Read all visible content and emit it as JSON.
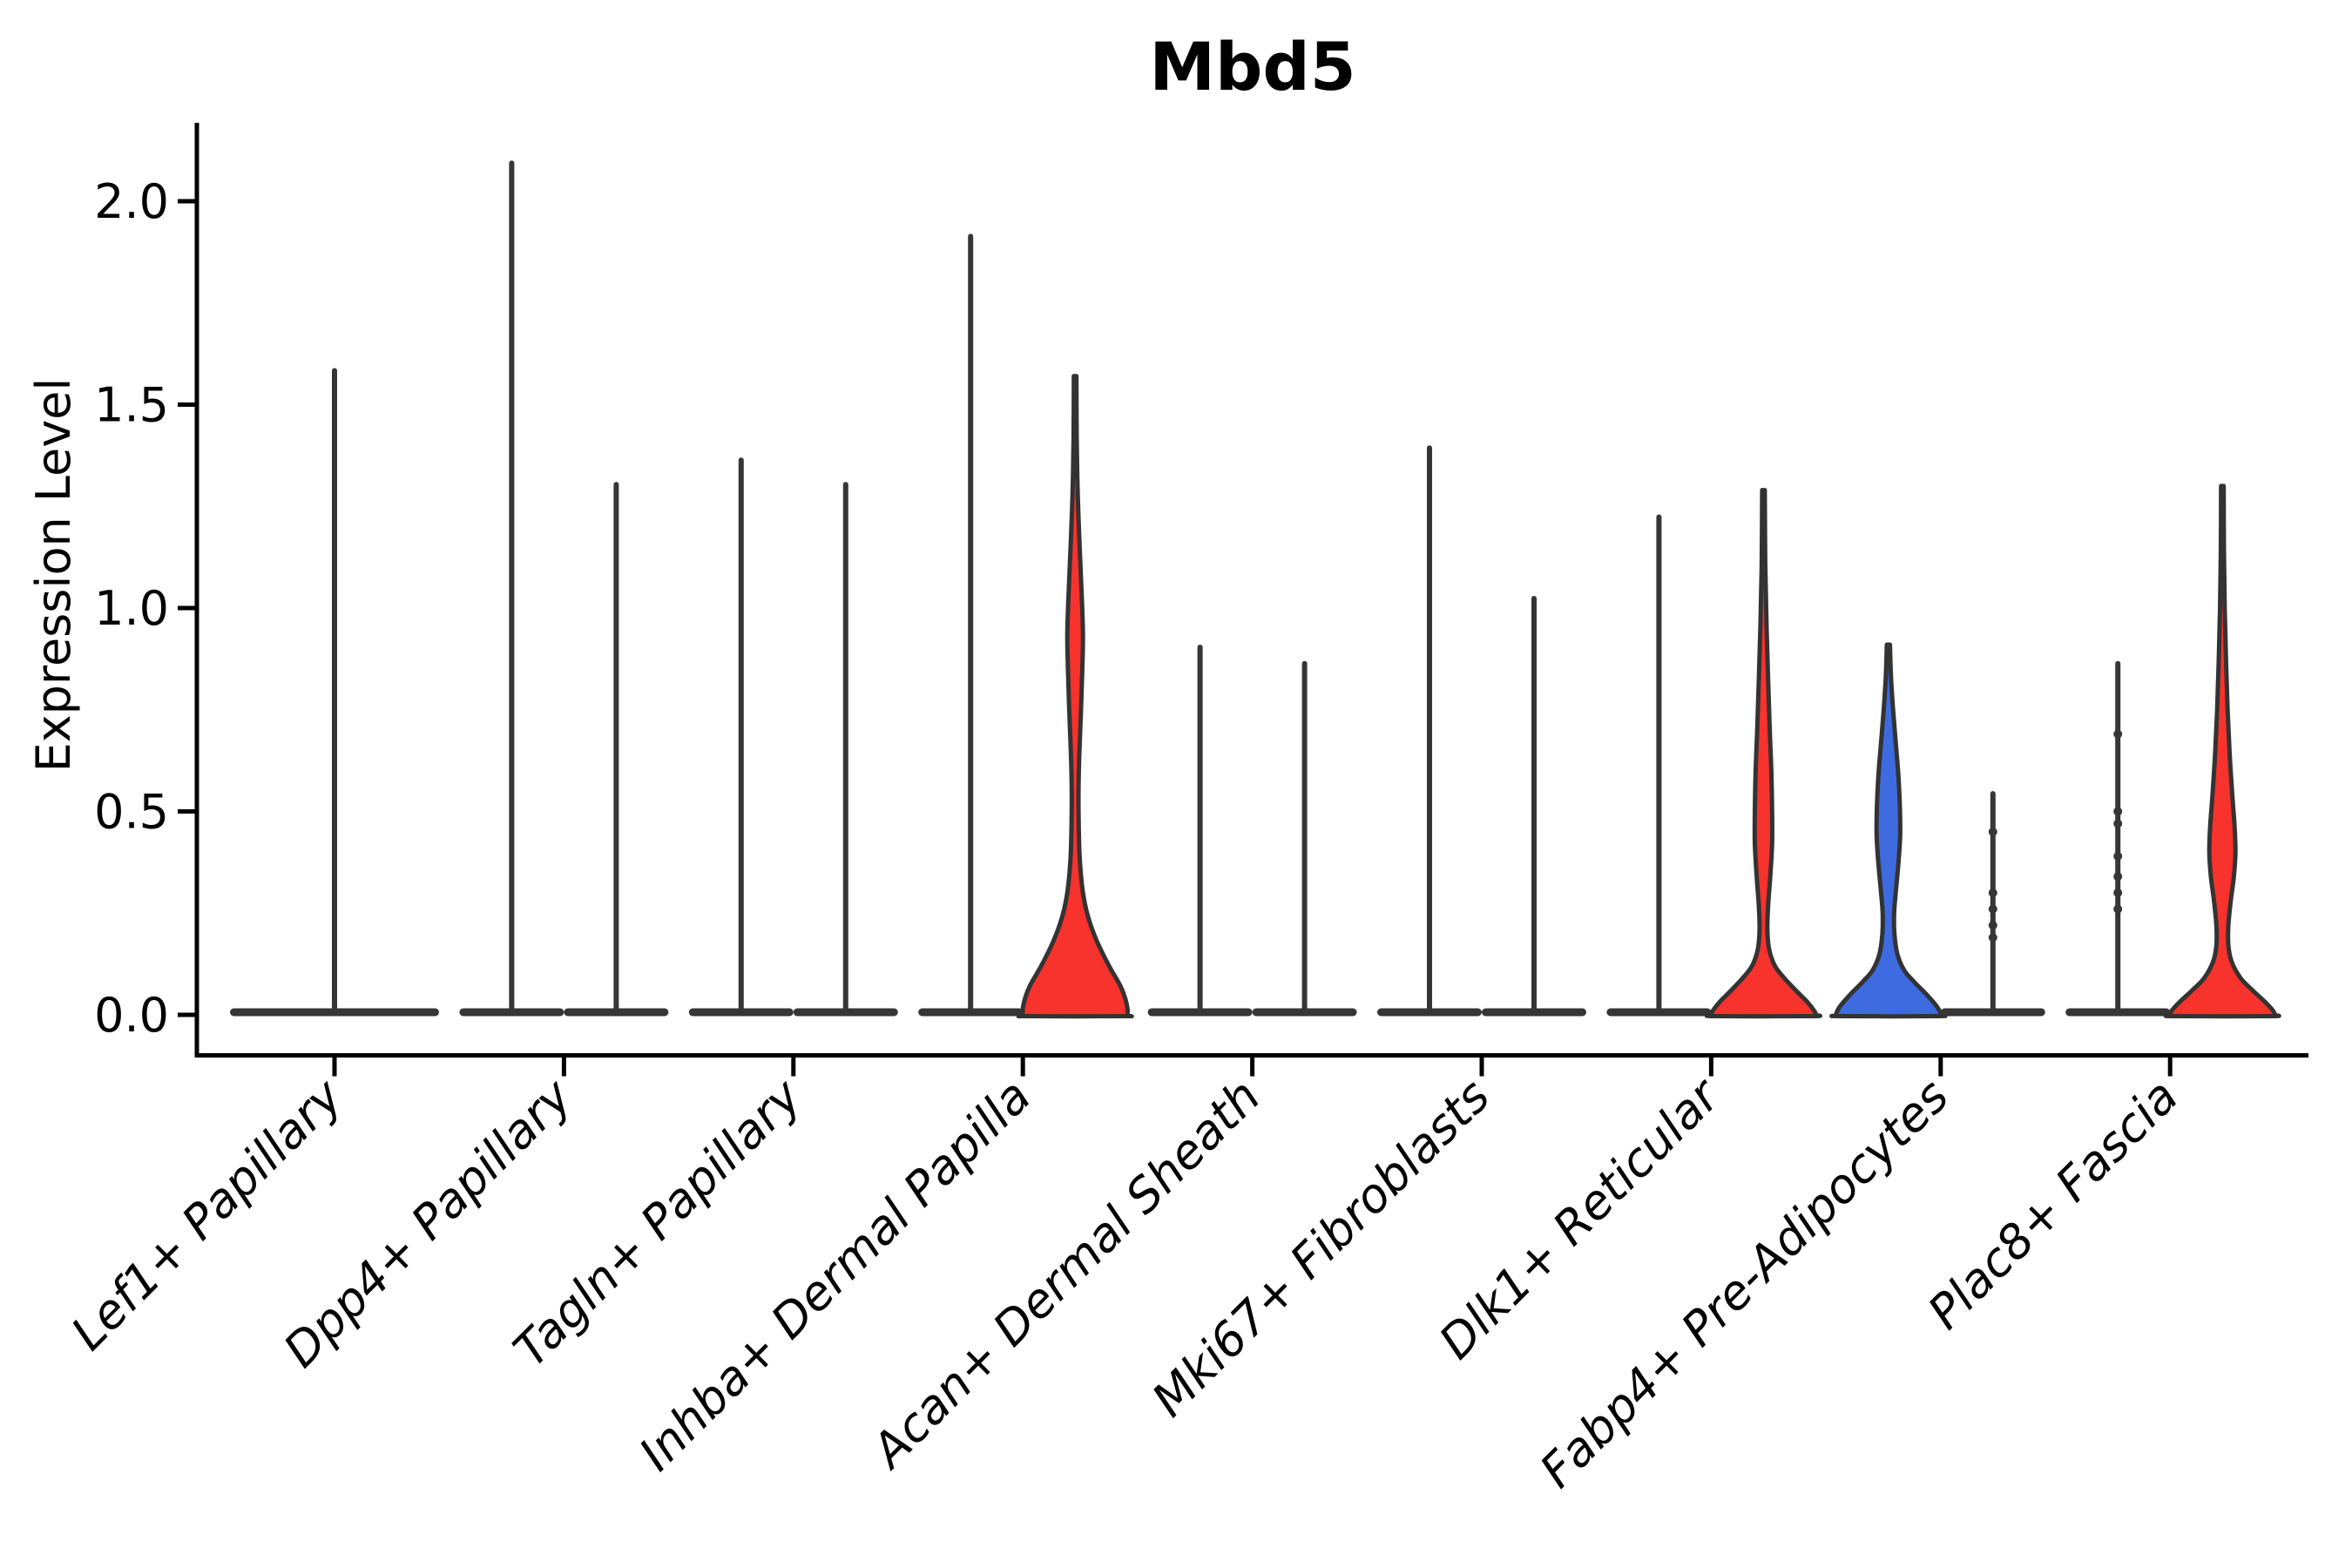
{
  "chart_data": {
    "type": "violin",
    "title": "Mbd5",
    "xlabel": "",
    "ylabel": "Expression Level",
    "ylim": [
      -0.1,
      2.19
    ],
    "grid": false,
    "legend": null,
    "y_ticks": [
      0.0,
      0.5,
      1.0,
      1.5,
      2.0
    ],
    "y_tick_labels": [
      "0.0",
      "0.5",
      "1.0",
      "1.5",
      "2.0"
    ],
    "x_tick_rotation": 45,
    "colors": {
      "blue_fill": "#3E6BE0",
      "red_fill": "#F8322C",
      "violin_outline": "#333333",
      "flat_violin": "#363636",
      "axis": "#000000",
      "background": "#FFFFFF"
    },
    "categories": [
      "Lef1+ Papillary",
      "Dpp4+ Papillary",
      "Tagln+ Papillary",
      "Inhba+ Dermal Papilla",
      "Acan+ Dermal Sheath",
      "Mki67+ Fibroblasts",
      "Dlk1+ Reticular",
      "Fabp4+ Pre-Adipocytes",
      "Plac8+ Fascia"
    ],
    "groups": [
      {
        "category": "Lef1+ Papillary",
        "violins": [
          {
            "slot": "full",
            "max": 1.59,
            "fill": null,
            "dots": [],
            "profile": null
          }
        ]
      },
      {
        "category": "Dpp4+ Papillary",
        "violins": [
          {
            "slot": "left",
            "max": 2.1,
            "fill": null,
            "dots": [],
            "profile": null
          },
          {
            "slot": "right",
            "max": 1.31,
            "fill": null,
            "dots": [],
            "profile": null
          }
        ]
      },
      {
        "category": "Tagln+ Papillary",
        "violins": [
          {
            "slot": "left",
            "max": 1.37,
            "fill": null,
            "dots": [],
            "profile": null
          },
          {
            "slot": "right",
            "max": 1.31,
            "fill": null,
            "dots": [],
            "profile": null
          }
        ]
      },
      {
        "category": "Inhba+ Dermal Papilla",
        "violins": [
          {
            "slot": "left",
            "max": 1.92,
            "fill": null,
            "dots": [],
            "profile": null
          },
          {
            "slot": "right",
            "max": 1.57,
            "fill": "#F8322C",
            "dots": [],
            "profile": [
              [
                1.57,
                0.025
              ],
              [
                1.42,
                0.03
              ],
              [
                1.28,
                0.05
              ],
              [
                1.14,
                0.09
              ],
              [
                1.02,
                0.13
              ],
              [
                0.93,
                0.15
              ],
              [
                0.84,
                0.135
              ],
              [
                0.74,
                0.11
              ],
              [
                0.64,
                0.08
              ],
              [
                0.55,
                0.065
              ],
              [
                0.46,
                0.07
              ],
              [
                0.38,
                0.09
              ],
              [
                0.3,
                0.15
              ],
              [
                0.24,
                0.25
              ],
              [
                0.18,
                0.42
              ],
              [
                0.12,
                0.65
              ],
              [
                0.07,
                0.87
              ],
              [
                0.03,
                0.98
              ],
              [
                0.0,
                1.0
              ]
            ]
          }
        ]
      },
      {
        "category": "Acan+ Dermal Sheath",
        "violins": [
          {
            "slot": "left",
            "max": 0.91,
            "fill": null,
            "dots": [],
            "profile": null
          },
          {
            "slot": "right",
            "max": 0.87,
            "fill": null,
            "dots": [],
            "profile": null
          }
        ]
      },
      {
        "category": "Mki67+ Fibroblasts",
        "violins": [
          {
            "slot": "left",
            "max": 1.4,
            "fill": null,
            "dots": [],
            "profile": null
          },
          {
            "slot": "right",
            "max": 1.03,
            "fill": null,
            "dots": [],
            "profile": null
          }
        ]
      },
      {
        "category": "Dlk1+ Reticular",
        "violins": [
          {
            "slot": "left",
            "max": 1.23,
            "fill": null,
            "dots": [],
            "profile": null
          },
          {
            "slot": "right",
            "max": 1.29,
            "fill": "#F8322C",
            "dots": [],
            "profile": [
              [
                1.29,
                0.025
              ],
              [
                1.1,
                0.035
              ],
              [
                0.95,
                0.06
              ],
              [
                0.82,
                0.09
              ],
              [
                0.7,
                0.12
              ],
              [
                0.6,
                0.15
              ],
              [
                0.5,
                0.165
              ],
              [
                0.42,
                0.165
              ],
              [
                0.34,
                0.13
              ],
              [
                0.27,
                0.09
              ],
              [
                0.21,
                0.075
              ],
              [
                0.16,
                0.11
              ],
              [
                0.12,
                0.22
              ],
              [
                0.09,
                0.4
              ],
              [
                0.06,
                0.62
              ],
              [
                0.03,
                0.85
              ],
              [
                0.01,
                0.97
              ],
              [
                0.0,
                1.0
              ]
            ]
          }
        ]
      },
      {
        "category": "Fabp4+ Pre-Adipocytes",
        "violins": [
          {
            "slot": "left",
            "max": 0.91,
            "fill": "#3E6BE0",
            "dots": [],
            "profile": [
              [
                0.91,
                0.03
              ],
              [
                0.83,
                0.05
              ],
              [
                0.75,
                0.09
              ],
              [
                0.67,
                0.14
              ],
              [
                0.59,
                0.19
              ],
              [
                0.51,
                0.22
              ],
              [
                0.44,
                0.225
              ],
              [
                0.37,
                0.19
              ],
              [
                0.3,
                0.14
              ],
              [
                0.25,
                0.11
              ],
              [
                0.2,
                0.115
              ],
              [
                0.15,
                0.17
              ],
              [
                0.11,
                0.3
              ],
              [
                0.08,
                0.5
              ],
              [
                0.05,
                0.73
              ],
              [
                0.02,
                0.93
              ],
              [
                0.0,
                1.0
              ]
            ]
          },
          {
            "slot": "right",
            "max": 0.55,
            "fill": null,
            "dots": [
              0.45,
              0.3,
              0.26,
              0.22,
              0.19
            ],
            "profile": null
          }
        ]
      },
      {
        "category": "Plac8+ Fascia",
        "violins": [
          {
            "slot": "left",
            "max": 0.87,
            "fill": null,
            "dots": [
              0.69,
              0.5,
              0.47,
              0.39,
              0.34,
              0.3,
              0.26
            ],
            "profile": null
          },
          {
            "slot": "right",
            "max": 1.3,
            "fill": "#F8322C",
            "dots": [],
            "profile": [
              [
                1.3,
                0.025
              ],
              [
                1.14,
                0.03
              ],
              [
                1.0,
                0.045
              ],
              [
                0.87,
                0.07
              ],
              [
                0.75,
                0.1
              ],
              [
                0.64,
                0.14
              ],
              [
                0.54,
                0.19
              ],
              [
                0.46,
                0.235
              ],
              [
                0.4,
                0.25
              ],
              [
                0.34,
                0.22
              ],
              [
                0.28,
                0.16
              ],
              [
                0.22,
                0.115
              ],
              [
                0.17,
                0.115
              ],
              [
                0.13,
                0.18
              ],
              [
                0.09,
                0.35
              ],
              [
                0.06,
                0.58
              ],
              [
                0.03,
                0.83
              ],
              [
                0.01,
                0.97
              ],
              [
                0.0,
                1.0
              ]
            ]
          }
        ]
      }
    ]
  }
}
